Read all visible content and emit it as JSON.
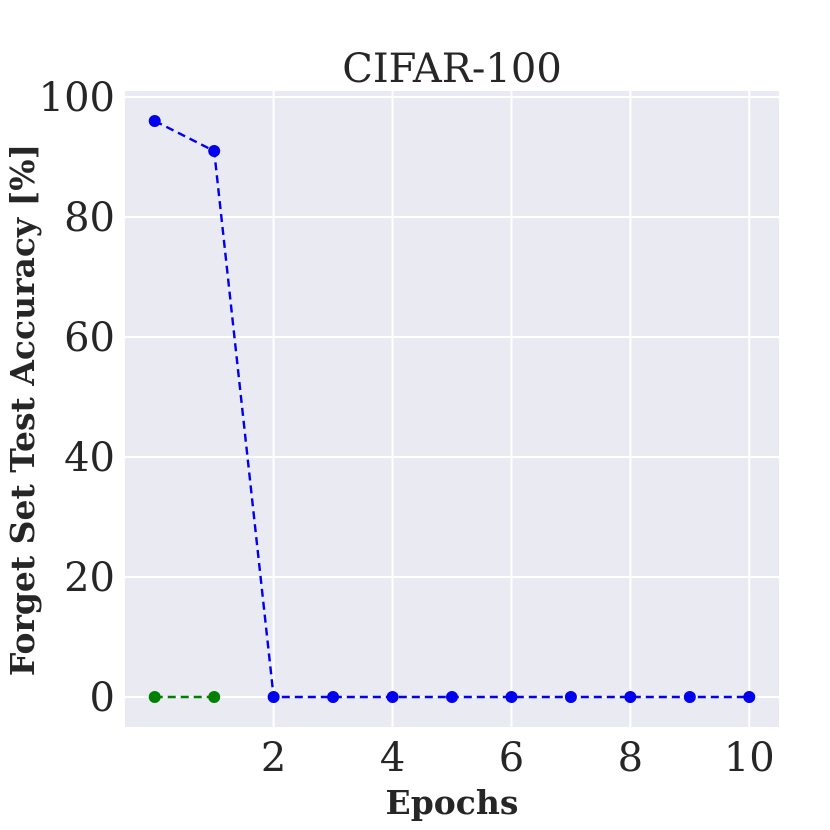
{
  "chart_data": {
    "type": "line",
    "title": "CIFAR-100",
    "xlabel": "Epochs",
    "ylabel": "Forget Set Test Accuracy [%]",
    "xlim": [
      -0.5,
      10.5
    ],
    "ylim": [
      -5,
      101
    ],
    "xticks": [
      "2",
      "4",
      "6",
      "8",
      "10"
    ],
    "xtick_values": [
      2,
      4,
      6,
      8,
      10
    ],
    "yticks": [
      "0",
      "20",
      "40",
      "60",
      "80",
      "100"
    ],
    "ytick_values": [
      0,
      20,
      40,
      60,
      80,
      100
    ],
    "grid": true,
    "colors": {
      "background": "#eaeaf2",
      "grid": "#ffffff",
      "text": "#262626"
    },
    "series": [
      {
        "color": "#008000",
        "style": "dashed",
        "marker": "circle",
        "x": [
          0,
          1
        ],
        "y": [
          0,
          0
        ]
      },
      {
        "color": "#0000ee",
        "style": "dashed",
        "marker": "circle",
        "x": [
          0,
          1,
          2,
          3,
          4,
          5,
          6,
          7,
          8,
          9,
          10
        ],
        "y": [
          96,
          91,
          0,
          0,
          0,
          0,
          0,
          0,
          0,
          0,
          0
        ]
      }
    ]
  }
}
